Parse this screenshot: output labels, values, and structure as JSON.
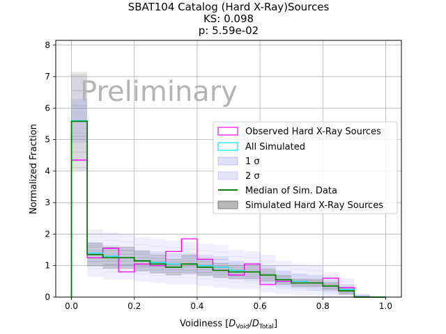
{
  "chart_data": {
    "type": "histogram",
    "title_lines": [
      "SBAT104 Catalog (Hard X-Ray)Sources",
      "KS: 0.098",
      "p: 5.59e-02"
    ],
    "xlabel_prefix": "Voidiness [",
    "xlabel_d1": "D",
    "xlabel_sub1": "Void",
    "xlabel_slash": "/",
    "xlabel_d2": "D",
    "xlabel_sub2": "Total",
    "xlabel_suffix": "]",
    "ylabel": "Normalized Fraction",
    "watermark": "Preliminary",
    "xlim": [
      -0.05,
      1.05
    ],
    "ylim": [
      0,
      8.15
    ],
    "xticks": [
      0.0,
      0.2,
      0.4,
      0.6,
      0.8,
      1.0
    ],
    "xtick_labels": [
      "0.0",
      "0.2",
      "0.4",
      "0.6",
      "0.8",
      "1.0"
    ],
    "yticks": [
      0,
      1,
      2,
      3,
      4,
      5,
      6,
      7,
      8
    ],
    "ytick_labels": [
      "0",
      "1",
      "2",
      "3",
      "4",
      "5",
      "6",
      "7",
      "8"
    ],
    "grid": true,
    "legend_position": "center-right",
    "bin_edges": [
      0.0,
      0.05,
      0.1,
      0.15,
      0.2,
      0.25,
      0.3,
      0.35,
      0.4,
      0.45,
      0.5,
      0.55,
      0.6,
      0.65,
      0.7,
      0.75,
      0.8,
      0.85,
      0.9,
      0.95,
      1.0
    ],
    "series": [
      {
        "name": "Observed Hard X-Ray Sources",
        "color": "#ff00ff",
        "values": [
          4.35,
          1.25,
          1.55,
          0.8,
          1.05,
          1.0,
          1.45,
          1.85,
          1.2,
          0.85,
          0.7,
          1.05,
          0.4,
          0.5,
          0.45,
          0.45,
          0.6,
          0.3,
          0.0,
          0.0
        ]
      },
      {
        "name": "All Simulated",
        "color": "#00e5ee",
        "values": [
          5.6,
          1.4,
          1.3,
          1.25,
          1.15,
          1.1,
          1.05,
          1.05,
          1.0,
          0.95,
          0.85,
          0.8,
          0.7,
          0.55,
          0.5,
          0.45,
          0.35,
          0.25,
          0.0,
          0.0
        ]
      },
      {
        "name": "Median of Sim. Data",
        "color": "#008000",
        "values": [
          5.58,
          1.35,
          1.25,
          1.25,
          1.15,
          1.05,
          0.95,
          1.05,
          0.95,
          0.85,
          0.8,
          0.8,
          0.7,
          0.55,
          0.45,
          0.45,
          0.35,
          0.2,
          0.0,
          0.0
        ]
      }
    ],
    "band_1sigma_label": "1 σ",
    "band_2sigma_label": "2 σ",
    "simulated_label": "Simulated Hard X-Ray Sources",
    "band_color": "#0000cc",
    "simulated_color": "#808080",
    "band_1sigma": {
      "lower": [
        4.9,
        1.0,
        0.9,
        0.9,
        0.8,
        0.75,
        0.7,
        0.7,
        0.65,
        0.6,
        0.55,
        0.5,
        0.4,
        0.3,
        0.25,
        0.2,
        0.15,
        0.1,
        0.0,
        0.0
      ],
      "upper": [
        6.3,
        1.75,
        1.65,
        1.6,
        1.5,
        1.45,
        1.4,
        1.4,
        1.35,
        1.3,
        1.15,
        1.1,
        1.0,
        0.85,
        0.75,
        0.7,
        0.55,
        0.4,
        0.05,
        0.0
      ]
    },
    "band_2sigma": {
      "lower": [
        4.3,
        0.65,
        0.55,
        0.55,
        0.5,
        0.45,
        0.4,
        0.4,
        0.35,
        0.3,
        0.25,
        0.25,
        0.15,
        0.1,
        0.05,
        0.05,
        0.0,
        0.0,
        0.0,
        0.0
      ],
      "upper": [
        7.0,
        2.15,
        2.05,
        2.0,
        1.9,
        1.85,
        1.8,
        1.75,
        1.7,
        1.65,
        1.5,
        1.45,
        1.35,
        1.15,
        1.05,
        1.0,
        0.8,
        0.6,
        0.1,
        0.0
      ]
    }
  }
}
